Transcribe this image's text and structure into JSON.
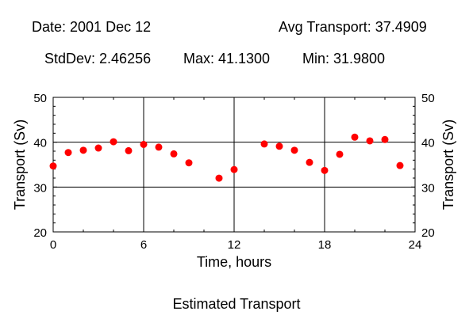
{
  "header": {
    "date": "Date: 2001 Dec 12",
    "avg": "Avg Transport: 37.4909",
    "stddev": "StdDev: 2.46256",
    "max": "Max: 41.1300",
    "min": "Min: 31.9800"
  },
  "caption": "Estimated Transport",
  "colors": {
    "point": "#ff0000",
    "axis": "#000000",
    "grid": "#000000"
  },
  "chart_data": {
    "type": "scatter",
    "title": "",
    "xlabel": "Time, hours",
    "ylabel": "Transport (Sv)",
    "ylabel_right": "Transport (Sv)",
    "xlim": [
      0,
      24
    ],
    "ylim": [
      20,
      50
    ],
    "xticks": [
      0,
      6,
      12,
      18,
      24
    ],
    "yticks": [
      20,
      30,
      40,
      50
    ],
    "grid": true,
    "x": [
      0,
      1,
      2,
      3,
      4,
      5,
      6,
      7,
      8,
      9,
      11,
      12,
      14,
      15,
      16,
      17,
      18,
      19,
      20,
      21,
      22,
      23
    ],
    "y": [
      34.7,
      37.7,
      38.2,
      38.7,
      40.1,
      38.1,
      39.5,
      38.9,
      37.4,
      35.4,
      31.98,
      33.9,
      39.6,
      39.1,
      38.2,
      35.5,
      33.7,
      37.3,
      41.13,
      40.3,
      40.6,
      34.8
    ]
  }
}
